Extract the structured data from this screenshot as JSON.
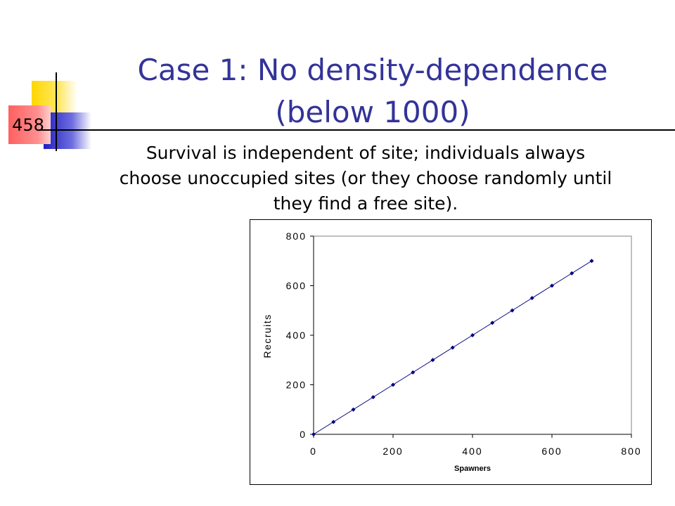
{
  "slide": {
    "number": "458",
    "title_lines": [
      "Case 1: No density-dependence",
      "(below 1000)"
    ],
    "body_lines": [
      "Survival is independent of site; individuals always",
      "choose unoccupied sites (or they choose randomly until",
      "they find a free site)."
    ]
  },
  "chart_data": {
    "type": "line",
    "markers": true,
    "color": "#000080",
    "x_label": "Spawners",
    "y_label": "Recruits",
    "x": [
      0,
      50,
      100,
      150,
      200,
      250,
      300,
      350,
      400,
      450,
      500,
      550,
      600,
      650,
      700
    ],
    "values": [
      0,
      50,
      100,
      150,
      200,
      250,
      300,
      350,
      400,
      450,
      500,
      550,
      600,
      650,
      700
    ],
    "xlim": [
      0,
      800
    ],
    "xticks": [
      0,
      200,
      400,
      600,
      800
    ],
    "ylim": [
      0,
      800
    ],
    "yticks": [
      0,
      200,
      400,
      600,
      800
    ]
  }
}
